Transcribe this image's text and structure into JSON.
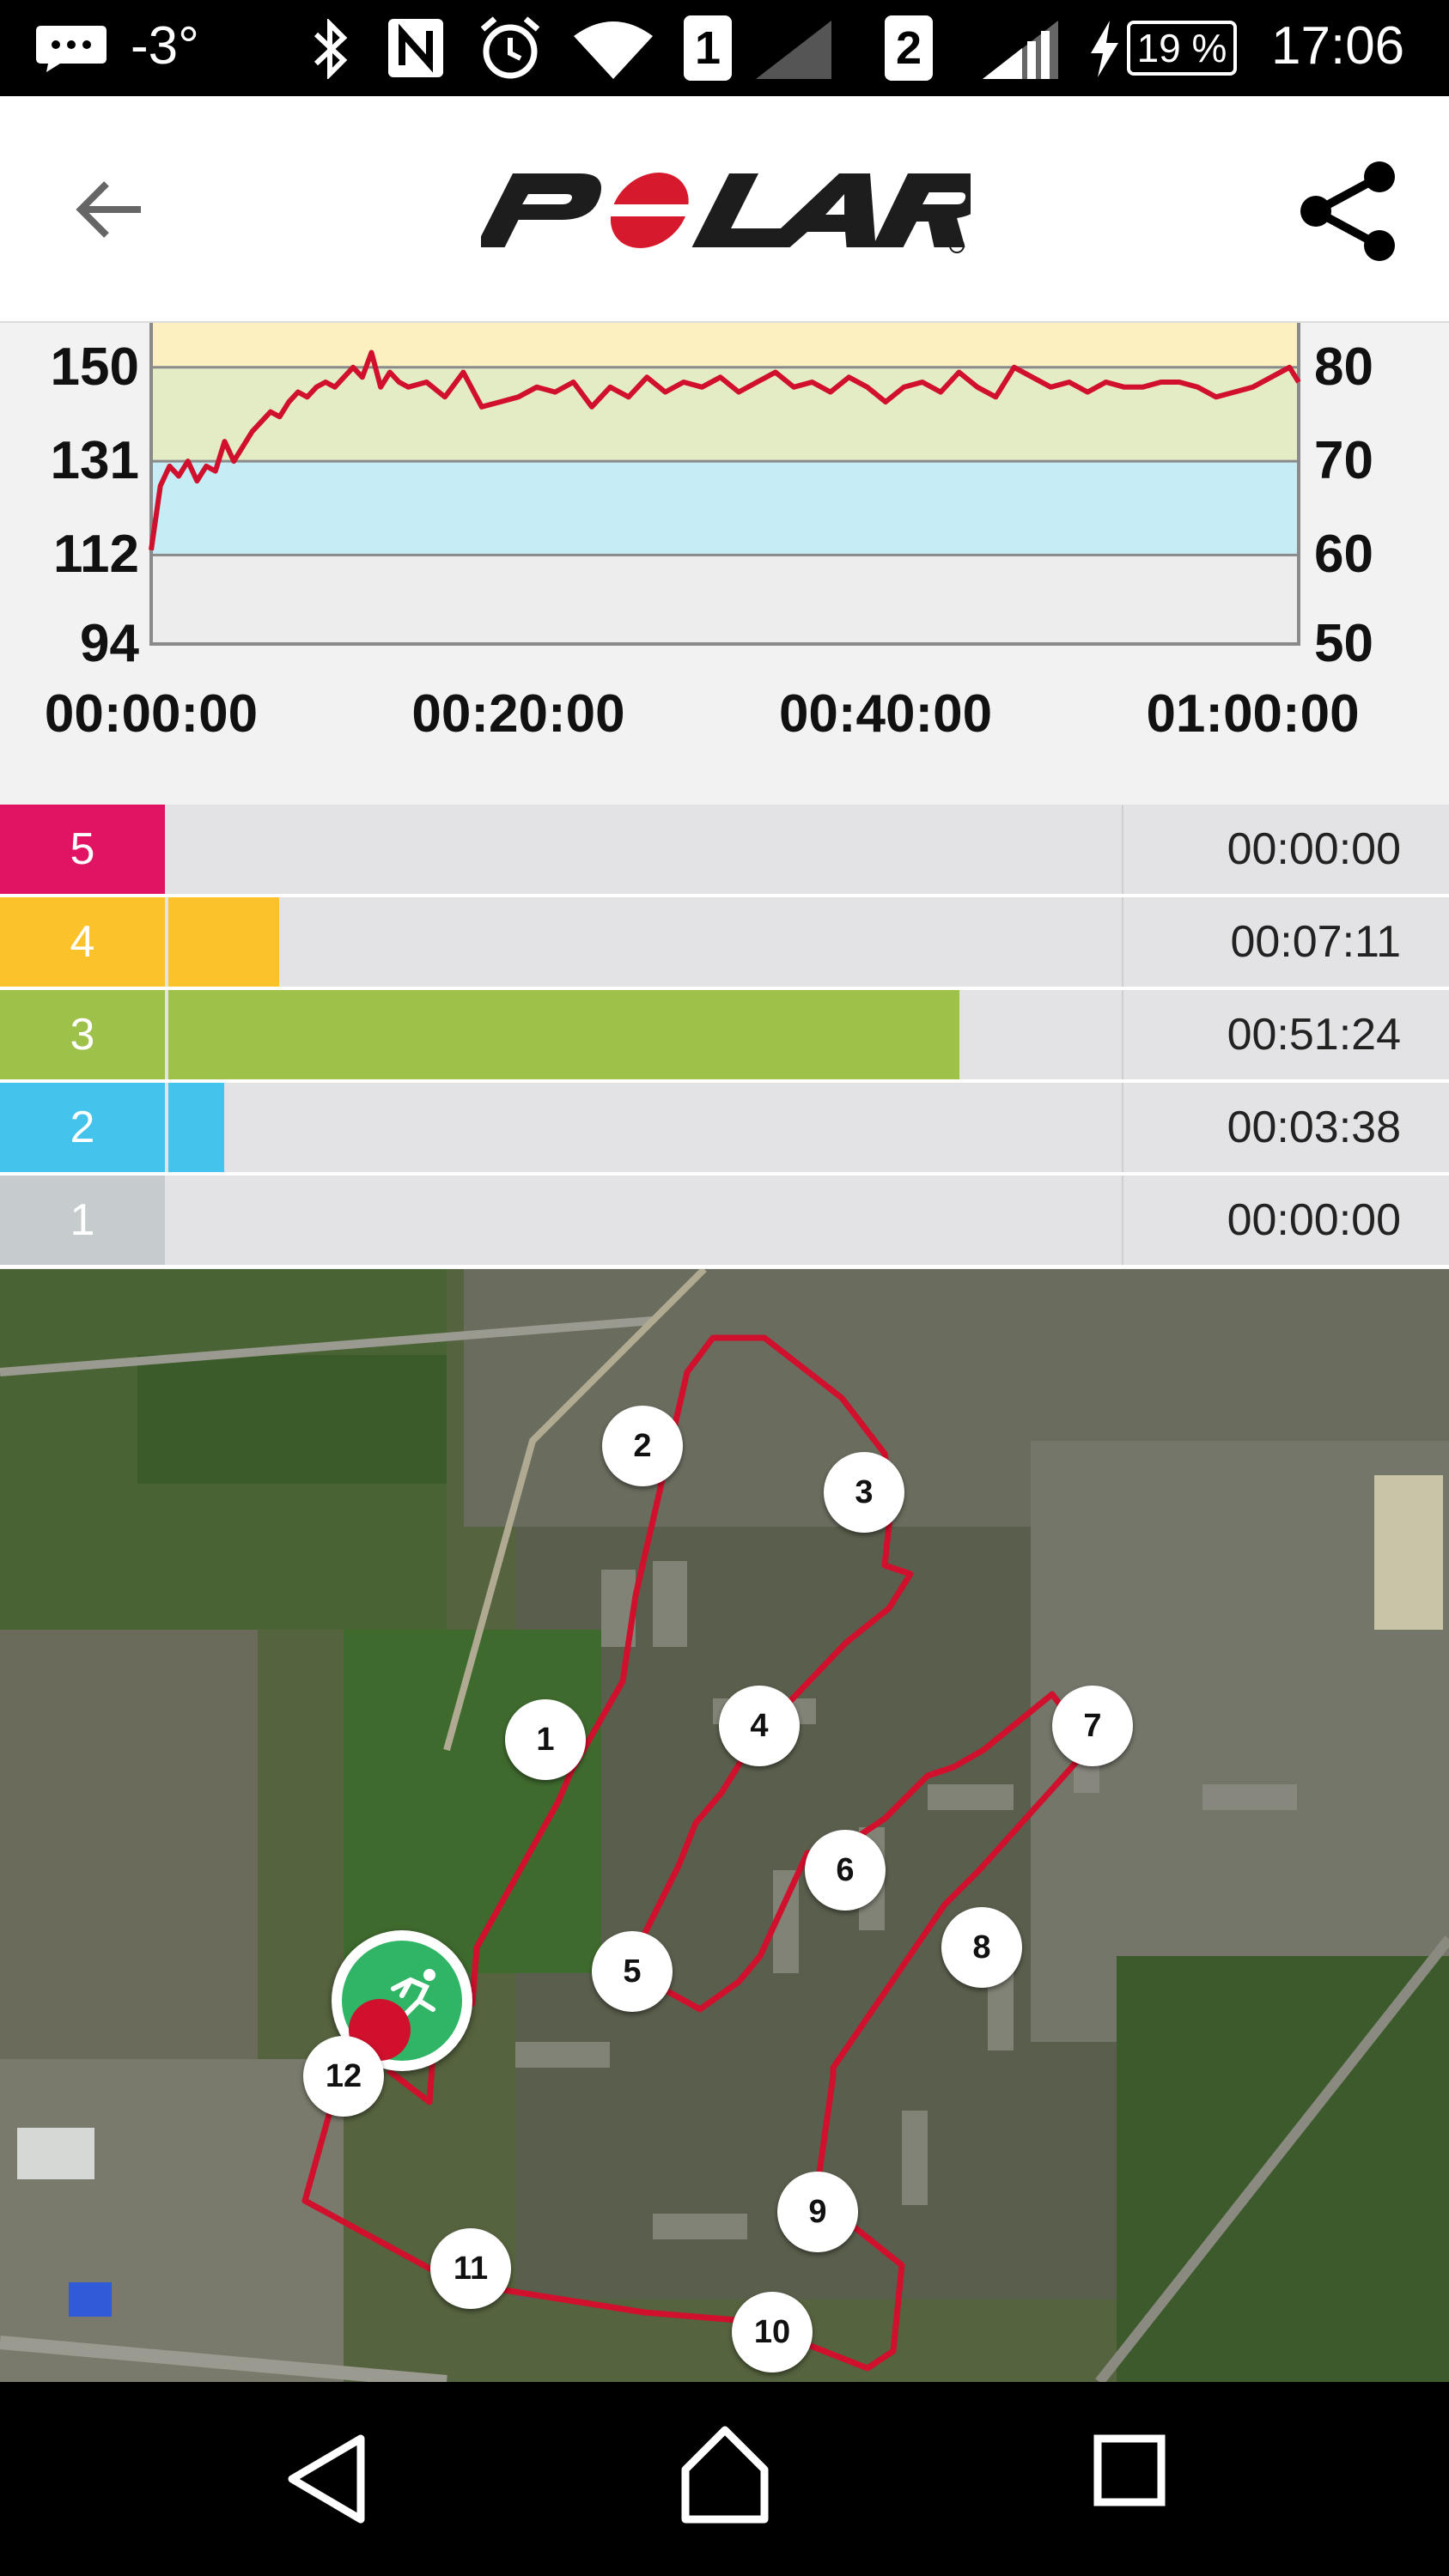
{
  "status_bar": {
    "temperature": "-3°",
    "sim1": "1",
    "sim2": "2",
    "battery": "19 %",
    "time": "17:06"
  },
  "app_bar": {
    "logo_text": "POLAR",
    "back_icon": "arrow-left-icon",
    "share_icon": "share-icon"
  },
  "chart_data": {
    "type": "line",
    "title": "",
    "xlabel": "",
    "ylabel": "",
    "x_ticks": [
      "00:00:00",
      "00:20:00",
      "00:40:00",
      "01:00:00"
    ],
    "y_left_ticks": [
      "150",
      "131",
      "112",
      "94"
    ],
    "y_right_ticks": [
      "80",
      "70",
      "60",
      "50"
    ],
    "ylim": [
      94,
      159
    ],
    "xlim_minutes": [
      0,
      62.5
    ],
    "zone_bands": [
      {
        "from": 94,
        "to": 112,
        "color": "#ededed"
      },
      {
        "from": 112,
        "to": 131,
        "color": "#c6ecf6"
      },
      {
        "from": 131,
        "to": 150,
        "color": "#e4ecc6"
      },
      {
        "from": 150,
        "to": 159,
        "color": "#fcefc0"
      }
    ],
    "series": [
      {
        "color": "#d0102c",
        "x": [
          0,
          0.5,
          1,
          1.5,
          2,
          2.5,
          3,
          3.5,
          4,
          4.5,
          5,
          5.5,
          6,
          6.5,
          7,
          7.5,
          8,
          8.5,
          9,
          9.5,
          10,
          10.5,
          11,
          11.5,
          12,
          12.5,
          13,
          13.5,
          14,
          15,
          16,
          17,
          18,
          19,
          20,
          21,
          22,
          23,
          24,
          25,
          26,
          27,
          28,
          29,
          30,
          31,
          32,
          33,
          34,
          35,
          36,
          37,
          38,
          39,
          40,
          41,
          42,
          43,
          44,
          45,
          46,
          47,
          48,
          49,
          50,
          51,
          52,
          53,
          54,
          55,
          56,
          57,
          58,
          59,
          60,
          61,
          62,
          62.5
        ],
        "values": [
          113,
          126,
          130,
          128,
          131,
          127,
          130,
          129,
          135,
          131,
          134,
          137,
          139,
          141,
          140,
          143,
          145,
          144,
          146,
          147,
          146,
          148,
          150,
          148,
          153,
          146,
          149,
          147,
          146,
          147,
          144,
          149,
          142,
          143,
          144,
          146,
          145,
          147,
          142,
          146,
          144,
          148,
          145,
          147,
          146,
          148,
          145,
          147,
          149,
          146,
          147,
          145,
          148,
          146,
          143,
          146,
          147,
          145,
          149,
          146,
          144,
          150,
          148,
          146,
          147,
          145,
          147,
          146,
          146,
          147,
          147,
          146,
          144,
          145,
          146,
          148,
          150,
          147
        ]
      }
    ],
    "grid": false,
    "legend": "none"
  },
  "zones": [
    {
      "label": "5",
      "time": "00:00:00",
      "fraction": 0.0,
      "color": "#e01462"
    },
    {
      "label": "4",
      "time": "00:07:11",
      "fraction": 0.116,
      "color": "#fcc22a"
    },
    {
      "label": "3",
      "time": "00:51:24",
      "fraction": 0.83,
      "color": "#9ec14a"
    },
    {
      "label": "2",
      "time": "00:03:38",
      "fraction": 0.059,
      "color": "#44c4ec"
    },
    {
      "label": "1",
      "time": "00:00:00",
      "fraction": 0.0,
      "color": "#c6cccd"
    }
  ],
  "map": {
    "markers": [
      "1",
      "2",
      "3",
      "4",
      "5",
      "6",
      "7",
      "8",
      "9",
      "10",
      "11",
      "12"
    ],
    "start_icon": "running-person-icon",
    "route_color": "#d0102c"
  },
  "nav_bar": {
    "back": "nav-back-icon",
    "home": "nav-home-icon",
    "recents": "nav-recents-icon"
  }
}
